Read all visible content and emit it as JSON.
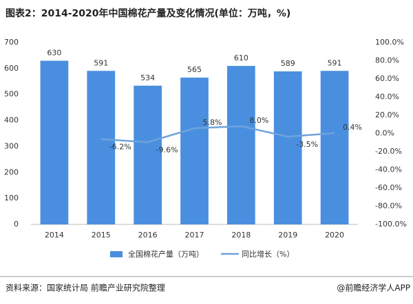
{
  "chart_data": {
    "type": "bar",
    "title": "图表2：2014-2020年中国棉花产量及变化情况(单位：万吨，%)",
    "categories": [
      "2014",
      "2015",
      "2016",
      "2017",
      "2018",
      "2019",
      "2020"
    ],
    "series": [
      {
        "name": "全国棉花产量（万吨）",
        "type": "bar",
        "color": "#4a8fdf",
        "values": [
          630,
          591,
          534,
          565,
          610,
          589,
          591
        ]
      },
      {
        "name": "同比增长（%）",
        "type": "line",
        "axis": "y2",
        "color": "#6ea3dc",
        "values": [
          null,
          -6.2,
          -9.6,
          5.8,
          8.0,
          -3.5,
          0.4
        ],
        "value_labels": [
          null,
          "-6.2%",
          "-9.6%",
          "5.8%",
          "8.0%",
          "-3.5%",
          "0.4%"
        ]
      }
    ],
    "ylim": [
      0,
      700
    ],
    "yticks": [
      0,
      100,
      200,
      300,
      400,
      500,
      600,
      700
    ],
    "y2lim": [
      -100,
      100
    ],
    "y2ticks": [
      {
        "value": 100,
        "label": "100.0%"
      },
      {
        "value": 80,
        "label": "80.0%"
      },
      {
        "value": 60,
        "label": "60.0%"
      },
      {
        "value": 40,
        "label": "40.0%"
      },
      {
        "value": 20,
        "label": "20.0%"
      },
      {
        "value": 0,
        "label": "0.0%"
      },
      {
        "value": -20,
        "label": "-20.0%"
      },
      {
        "value": -40,
        "label": "-40.0%"
      },
      {
        "value": -60,
        "label": "-60.0%"
      },
      {
        "value": -80,
        "label": "-80.0%"
      },
      {
        "value": -100,
        "label": "-100.0%"
      }
    ],
    "source": "资料来源：国家统计局 前瞻产业研究院整理",
    "credit": "@前瞻经济学人APP"
  }
}
